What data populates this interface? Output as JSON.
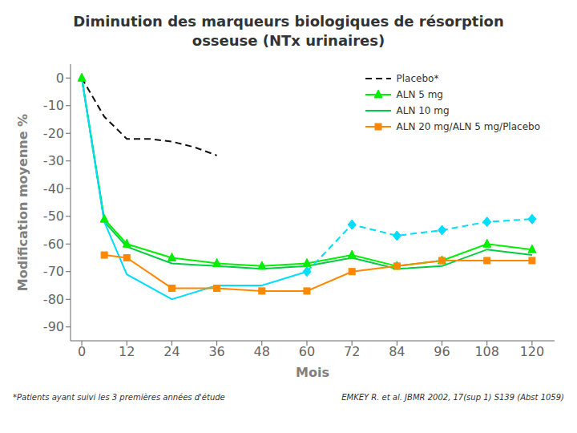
{
  "chart_data": {
    "type": "line",
    "title": "Diminution des marqueurs biologiques de résorption osseuse (NTx urinaires)",
    "xlabel": "Mois",
    "ylabel": "Modification moyenne %",
    "annotations": [
      "*Patients ayant suivi les 3 premières années d'étude",
      "EMKEY  R. et al. JBMR 2002, 17(sup 1) S139 (Abst 1059)"
    ],
    "xlim": [
      -3,
      126
    ],
    "xticks": [
      0,
      12,
      24,
      36,
      48,
      60,
      72,
      84,
      96,
      108,
      120
    ],
    "ylim": [
      -95,
      5
    ],
    "yticks": [
      0,
      -10,
      -20,
      -30,
      -40,
      -50,
      -60,
      -70,
      -80,
      -90
    ],
    "legend": "upper right",
    "series": [
      {
        "name": "Placebo*",
        "color": "#111111",
        "line_style": "dashed",
        "x": [
          0,
          6,
          12,
          18,
          24,
          30,
          36
        ],
        "values": [
          0,
          -14,
          -22,
          -22,
          -23,
          -25,
          -28
        ]
      },
      {
        "name": "ALN 5 mg",
        "color": "#00EE00",
        "line_style": "solid",
        "marker": "triangle",
        "x": [
          0,
          6,
          12,
          24,
          36,
          48,
          60,
          72,
          84,
          96,
          108,
          120
        ],
        "values": [
          0,
          -51,
          -60,
          -65,
          -67,
          -68,
          -67,
          -64,
          -68,
          -66,
          -60,
          -62
        ]
      },
      {
        "name": "ALN 10 mg",
        "color": "#00CC44",
        "line_style": "solid",
        "x": [
          0,
          6,
          12,
          24,
          36,
          48,
          60,
          72,
          84,
          96,
          108,
          120
        ],
        "values": [
          0,
          -52,
          -61,
          -67,
          -68,
          -69,
          -68,
          -65,
          -69,
          -68,
          -62,
          -64
        ]
      },
      {
        "color": "#00DDFF",
        "line_style": "solid",
        "x": [
          0,
          6,
          12,
          24,
          36,
          48,
          60
        ],
        "values": [
          0,
          -52,
          -71,
          -80,
          -75,
          -75,
          -70
        ]
      },
      {
        "name": "ALN 20 mg/ALN 5 mg/Placebo",
        "color": "#FF8800",
        "line_style": "solid",
        "marker": "square",
        "x": [
          6,
          12,
          24,
          36,
          48,
          60,
          72,
          84,
          96,
          108,
          120
        ],
        "values": [
          -64,
          -65,
          -76,
          -76,
          -77,
          -77,
          -70,
          -68,
          -66,
          -66,
          -66
        ]
      },
      {
        "color": "#00DDFF",
        "line_style": "dashed",
        "marker": "diamond",
        "x": [
          60,
          72,
          84,
          96,
          108,
          120
        ],
        "values": [
          -70,
          -53,
          -57,
          -55,
          -52,
          -51
        ]
      }
    ]
  }
}
